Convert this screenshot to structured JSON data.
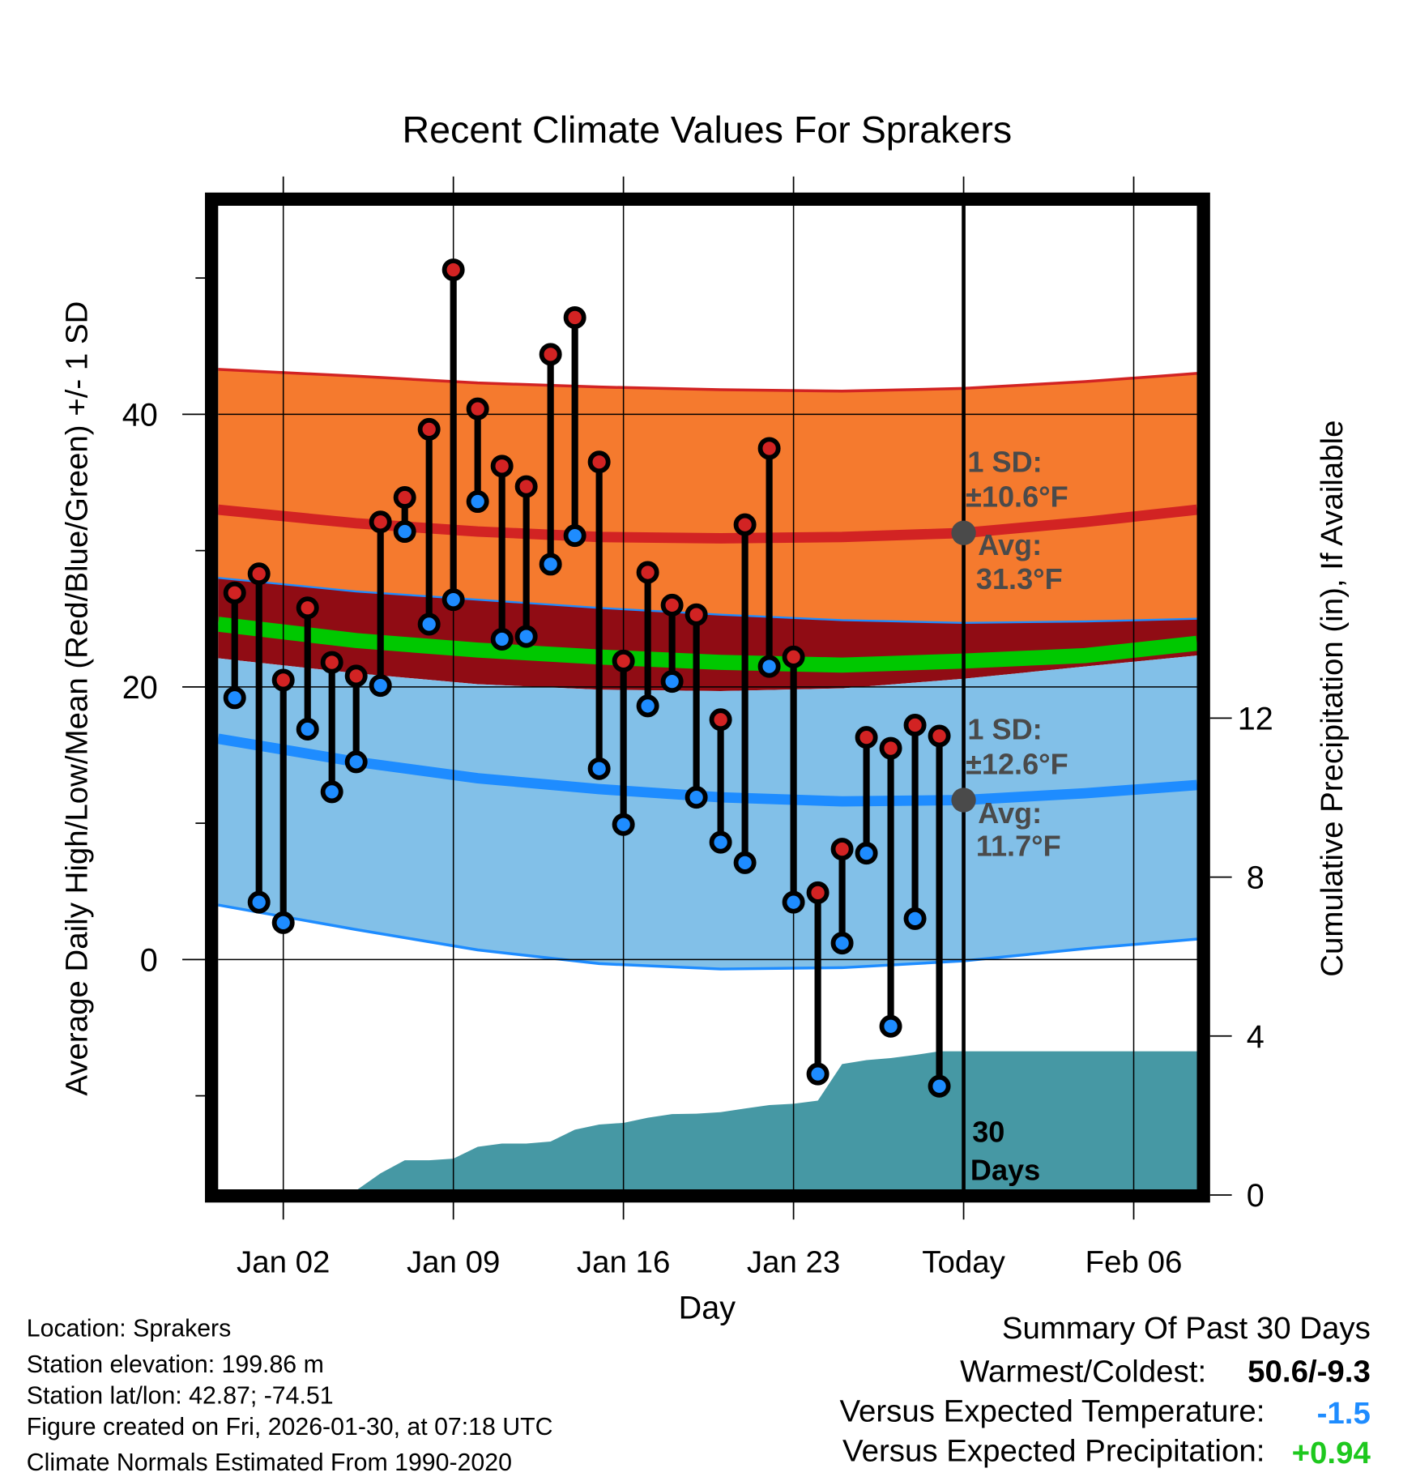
{
  "chart_data": {
    "type": "line",
    "title": "Recent Climate Values For Sprakers",
    "xlabel": "Day",
    "ylabel": "Average Daily High/Low/Mean (Red/Blue/Green) +/- 1 SD",
    "ylabel_right": "Cumulative Precipitation (in), If Available",
    "ylim": [
      -17,
      55.3
    ],
    "ylim_right": [
      0,
      24.8
    ],
    "xlim_days": [
      -0.68,
      39.6
    ],
    "x_ticks": [
      {
        "day": 2,
        "label": "Jan 02"
      },
      {
        "day": 9,
        "label": "Jan 09"
      },
      {
        "day": 16,
        "label": "Jan 16"
      },
      {
        "day": 23,
        "label": "Jan 23"
      },
      {
        "day": 30,
        "label": "Today"
      },
      {
        "day": 37,
        "label": "Feb 06"
      }
    ],
    "y_ticks": [
      0,
      20,
      40
    ],
    "y_minor_ticks": [
      -10,
      10,
      30,
      50
    ],
    "y_ticks_right": [
      0,
      4,
      8,
      12
    ],
    "today_day": 30,
    "dates": [
      "Dec 31",
      "Jan 01",
      "Jan 02",
      "Jan 03",
      "Jan 04",
      "Jan 05",
      "Jan 06",
      "Jan 07",
      "Jan 08",
      "Jan 09",
      "Jan 10",
      "Jan 11",
      "Jan 12",
      "Jan 13",
      "Jan 14",
      "Jan 15",
      "Jan 16",
      "Jan 17",
      "Jan 18",
      "Jan 19",
      "Jan 20",
      "Jan 21",
      "Jan 22",
      "Jan 23",
      "Jan 24",
      "Jan 25",
      "Jan 26",
      "Jan 27",
      "Jan 28",
      "Jan 29"
    ],
    "days": [
      0,
      1,
      2,
      3,
      4,
      5,
      6,
      7,
      8,
      9,
      10,
      11,
      12,
      13,
      14,
      15,
      16,
      17,
      18,
      19,
      20,
      21,
      22,
      23,
      24,
      25,
      26,
      27,
      28,
      29
    ],
    "highs": [
      26.9,
      28.3,
      20.5,
      25.8,
      21.8,
      20.8,
      32.1,
      33.9,
      38.9,
      50.6,
      40.4,
      36.2,
      34.7,
      44.4,
      47.1,
      36.5,
      21.9,
      28.4,
      26.0,
      25.3,
      17.6,
      31.9,
      37.5,
      22.2,
      4.9,
      8.1,
      16.3,
      15.5,
      17.2,
      16.4
    ],
    "lows": [
      19.2,
      4.2,
      2.7,
      16.9,
      12.3,
      14.5,
      20.1,
      31.4,
      24.6,
      26.4,
      33.6,
      23.5,
      23.7,
      29.0,
      31.1,
      14.0,
      9.9,
      18.6,
      20.4,
      11.9,
      8.6,
      7.1,
      21.5,
      4.2,
      -8.4,
      1.2,
      7.8,
      -4.9,
      3.0,
      -9.3
    ],
    "normals": {
      "days": [
        -0.68,
        5,
        10,
        15,
        20,
        25,
        30,
        35,
        39.6
      ],
      "high_avg": [
        33.0,
        32.0,
        31.4,
        31.0,
        30.9,
        31.0,
        31.3,
        32.1,
        33.0
      ],
      "high_plus_sd": [
        43.3,
        42.8,
        42.3,
        42.0,
        41.8,
        41.7,
        41.9,
        42.4,
        43.0
      ],
      "high_minus_sd": [
        28.0,
        27.0,
        26.4,
        25.8,
        25.3,
        24.9,
        24.7,
        24.8,
        25.0
      ],
      "mean_avg": [
        24.6,
        23.4,
        22.7,
        22.2,
        21.8,
        21.6,
        21.9,
        22.3,
        23.2
      ],
      "low_avg": [
        16.2,
        14.5,
        13.3,
        12.5,
        11.9,
        11.6,
        11.7,
        12.2,
        12.8
      ],
      "low_plus_sd": [
        22.1,
        21.0,
        20.2,
        19.8,
        19.7,
        19.9,
        20.6,
        21.5,
        22.3
      ],
      "low_minus_sd": [
        4.0,
        2.2,
        0.7,
        -0.3,
        -0.7,
        -0.6,
        -0.1,
        0.8,
        1.5
      ]
    },
    "precip": {
      "days": [
        -0.68,
        4,
        5,
        6,
        7,
        8,
        9,
        10,
        11,
        12,
        13,
        14,
        15,
        16,
        17,
        18,
        19,
        20,
        21,
        22,
        23,
        24,
        25,
        26,
        27,
        28,
        29,
        30,
        39.6
      ],
      "values": [
        0,
        0,
        0.02,
        0.45,
        0.78,
        0.78,
        0.82,
        1.12,
        1.2,
        1.2,
        1.25,
        1.55,
        1.68,
        1.72,
        1.85,
        1.94,
        1.95,
        1.99,
        2.08,
        2.17,
        2.2,
        2.28,
        3.2,
        3.3,
        3.35,
        3.43,
        3.52,
        3.52,
        3.52
      ]
    },
    "annotations": {
      "high_sd": "1 SD:",
      "high_sd_val": "±10.6°F",
      "high_avg": "Avg:",
      "high_avg_val": "31.3°F",
      "low_sd": "1 SD:",
      "low_sd_val": "±12.6°F",
      "low_avg": "Avg:",
      "low_avg_val": "11.7°F",
      "days_label_1": "30",
      "days_label_2": "Days"
    },
    "colors": {
      "high_band": "#f57a2e",
      "high_line": "#d22323",
      "overlap": "#900c14",
      "mean": "#00c800",
      "low_band": "#82c0e8",
      "low_line": "#1e8cff",
      "precip": "#4698a4",
      "annot": "#4a4a4a"
    }
  },
  "info": {
    "location": "Location: Sprakers",
    "elevation": "Station elevation: 199.86 m",
    "latlon": "Station lat/lon: 42.87; -74.51",
    "created": "Figure created on Fri, 2026-01-30, at 07:18 UTC",
    "normals": "Climate Normals Estimated From 1990-2020"
  },
  "summary": {
    "title": "Summary Of Past 30 Days",
    "warm_label": "Warmest/Coldest:",
    "warm_value": "50.6/-9.3",
    "temp_label": "Versus Expected Temperature:",
    "temp_value": "-1.5",
    "precip_label": "Versus Expected Precipitation:",
    "precip_value": "+0.94",
    "temp_color": "#1e8cff",
    "precip_color": "#1ec81e"
  }
}
